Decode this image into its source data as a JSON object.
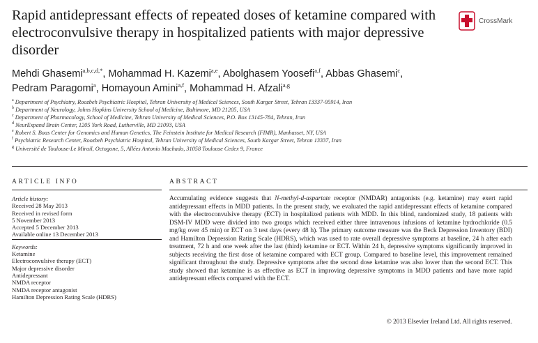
{
  "title": "Rapid antidepressant effects of repeated doses of ketamine compared with electroconvulsive therapy in hospitalized patients with major depressive disorder",
  "crossmark": {
    "label": "CrossMark",
    "icon": "crossmark-icon"
  },
  "authors": [
    {
      "name": "Mehdi Ghasemi",
      "sup": "a,b,c,d,",
      "star": "*",
      "sep": ", "
    },
    {
      "name": "Mohammad H. Kazemi",
      "sup": "a,e",
      "sep": ", "
    },
    {
      "name": "Abolghasem Yoosefi",
      "sup": "a,f",
      "sep": ", "
    },
    {
      "name": "Abbas Ghasemi",
      "sup": "c",
      "sep": ","
    },
    {
      "name": "Pedram Paragomi",
      "sup": "a",
      "sep": ", "
    },
    {
      "name": "Homayoun Amini",
      "sup": "a,f",
      "sep": ", "
    },
    {
      "name": "Mohammad H. Afzali",
      "sup": "a,g",
      "sep": ""
    }
  ],
  "affiliations": [
    {
      "sup": "a",
      "text": "Department of Psychiatry, Roozbeh Psychiatric Hospital, Tehran University of Medical Sciences, South Kargar Street, Tehran 13337-95914, Iran"
    },
    {
      "sup": "b",
      "text": "Department of Neurology, Johns Hopkins University School of Medicine, Baltimore, MD 21205, USA"
    },
    {
      "sup": "c",
      "text": "Department of Pharmacology, School of Medicine, Tehran University of Medical Sciences, P.O. Box 13145-784, Tehran, Iran"
    },
    {
      "sup": "d",
      "text": "NeurExpand Brain Center, 1205 York Road, Lutherville, MD 21093, USA"
    },
    {
      "sup": "e",
      "text": "Robert S. Boas Center for Genomics and Human Genetics, The Feinstein Institute for Medical Research (FIMR), Manhasset, NY, USA"
    },
    {
      "sup": "f",
      "text": "Psychiatric Research Center, Roozbeh Psychiatric Hospital, Tehran University of Medical Sciences, South Kargar Street, Tehran 13337, Iran"
    },
    {
      "sup": "g",
      "text": "Université de Toulouse-Le Mirail, Octogone, 5, Allées Antonio Machado, 31058 Toulouse Cedex 9, France"
    }
  ],
  "article_info": {
    "heading": "ARTICLE INFO",
    "history_label": "Article history:",
    "received": "Received 28 May 2013",
    "revised_1": "Received in revised form",
    "revised_2": "5 November 2013",
    "accepted": "Accepted 5 December 2013",
    "online": "Available online 13 December 2013",
    "keywords_label": "Keywords:",
    "keywords": [
      "Ketamine",
      "Electroconvulsive therapy (ECT)",
      "Major depressive disorder",
      "Antidepressant",
      "NMDA receptor",
      "NMDA receptor antagonist",
      "Hamilton Depression Rating Scale (HDRS)"
    ]
  },
  "abstract": {
    "heading": "ABSTRACT",
    "lead": "Accumulating evidence suggests that ",
    "nmda_italic": "N-methyl-d-aspartate",
    "body": " receptor (NMDAR) antagonists (e.g. ketamine) may exert rapid antidepressant effects in MDD patients. In the present study, we evaluated the rapid antidepressant effects of ketamine compared with the electroconvulsive therapy (ECT) in hospitalized patients with MDD. In this blind, randomized study, 18 patients with DSM-IV MDD were divided into two groups which received either three intravenous infusions of ketamine hydrochloride (0.5 mg/kg over 45 min) or ECT on 3 test days (every 48 h). The primary outcome measure was the Beck Depression Inventory (BDI) and Hamilton Depression Rating Scale (HDRS), which was used to rate overall depressive symptoms at baseline, 24 h after each treatment, 72 h and one week after the last (third) ketamine or ECT. Within 24 h, depressive symptoms significantly improved in subjects receiving the first dose of ketamine compared with ECT group. Compared to baseline level, this improvement remained significant throughout the study. Depressive symptoms after the second dose ketamine was also lower than the second ECT. This study showed that ketamine is as effective as ECT in improving depressive symptoms in MDD patients and have more rapid antidepressant effects compared with the ECT.",
    "copyright": "© 2013 Elsevier Ireland Ltd. All rights reserved."
  }
}
